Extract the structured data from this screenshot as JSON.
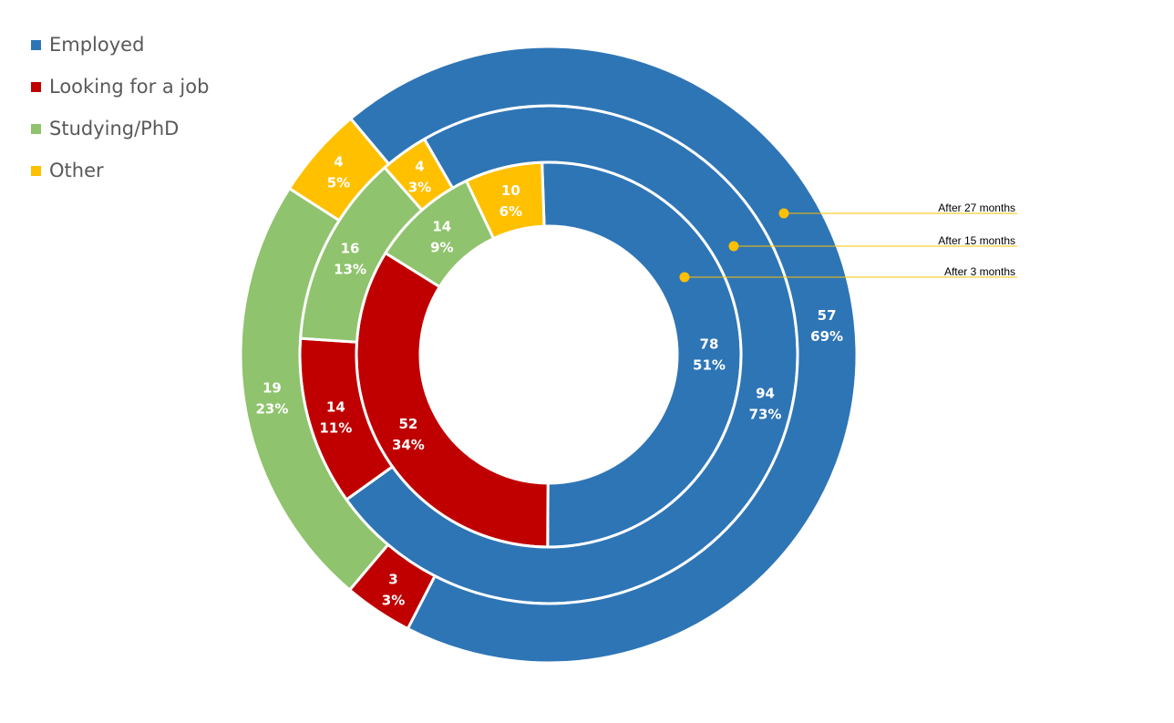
{
  "colors": {
    "employed": "#2E75B6",
    "looking": "#C00000",
    "studying": "#8FC36D",
    "other": "#FFC000"
  },
  "legend": [
    {
      "label": "Employed",
      "color": "#2E75B6"
    },
    {
      "label": "Looking for a job",
      "color": "#C00000"
    },
    {
      "label": "Studying/PhD",
      "color": "#8FC36D"
    },
    {
      "label": "Other",
      "color": "#FFC000"
    }
  ],
  "chart_data": {
    "type": "pie",
    "title": "",
    "categories": [
      "Employed",
      "Looking for a job",
      "Studying/PhD",
      "Other"
    ],
    "series": [
      {
        "name": "After 3 months",
        "values": [
          78,
          52,
          14,
          10
        ],
        "labels": [
          "78",
          "52",
          "14",
          "10"
        ],
        "percents": [
          "51%",
          "34%",
          "9%",
          "6%"
        ]
      },
      {
        "name": "After 15 months",
        "values": [
          94,
          14,
          16,
          4
        ],
        "labels": [
          "94",
          "14",
          "16",
          "4"
        ],
        "percents": [
          "73%",
          "11%",
          "13%",
          "3%"
        ]
      },
      {
        "name": "After 27 months",
        "values": [
          57,
          3,
          19,
          4
        ],
        "labels": [
          "57",
          "3",
          "19",
          "4"
        ],
        "percents": [
          "69%",
          "3%",
          "23%",
          "5%"
        ]
      }
    ],
    "legend": "top-left"
  }
}
